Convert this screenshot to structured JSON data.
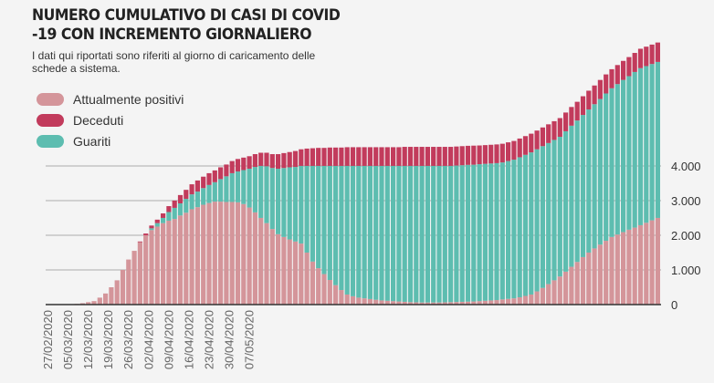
{
  "chart_data": {
    "type": "bar",
    "stacked": true,
    "title": "NUMERO CUMULATIVO DI CASI DI COVID -19 CON INCREMENTO GIORNALIERO",
    "subtitle": "I dati qui riportati sono riferiti al giorno di caricamento delle schede a sistema.",
    "x_tick_labels": [
      "27/02/2020",
      "05/03/2020",
      "12/03/2020",
      "19/03/2020",
      "26/03/2020",
      "02/04/2020",
      "09/04/2020",
      "16/04/2020",
      "23/04/2020",
      "30/04/2020",
      "07/05/2020"
    ],
    "y_ticks": [
      0,
      1000,
      2000,
      3000,
      4000
    ],
    "y_tick_labels": [
      "0",
      "1.000",
      "2.000",
      "3.000",
      "4.000"
    ],
    "ylim": [
      0,
      7550
    ],
    "grid": true,
    "legend_position": "top-left",
    "series": [
      {
        "name": "Attualmente positivi",
        "color": "#d4959a",
        "values": [
          0,
          0,
          0,
          0,
          0,
          20,
          40,
          70,
          100,
          200,
          320,
          500,
          700,
          1000,
          1300,
          1550,
          1800,
          2000,
          2150,
          2250,
          2350,
          2420,
          2470,
          2570,
          2650,
          2750,
          2810,
          2880,
          2930,
          2970,
          2970,
          2960,
          2960,
          2950,
          2900,
          2800,
          2660,
          2500,
          2350,
          2180,
          2030,
          1950,
          1880,
          1820,
          1760,
          1500,
          1240,
          1050,
          880,
          710,
          560,
          420,
          290,
          240,
          200,
          180,
          160,
          140,
          120,
          110,
          100,
          90,
          80,
          70,
          65,
          60,
          60,
          60,
          60,
          65,
          70,
          75,
          80,
          85,
          90,
          100,
          110,
          120,
          130,
          150,
          165,
          180,
          210,
          250,
          290,
          380,
          480,
          590,
          700,
          810,
          950,
          1090,
          1230,
          1370,
          1500,
          1620,
          1730,
          1840,
          1950,
          2020,
          2090,
          2160,
          2220,
          2290,
          2360,
          2430,
          2500
        ]
      },
      {
        "name": "Guariti",
        "color": "#5dbdb0",
        "values": [
          0,
          0,
          0,
          0,
          0,
          0,
          0,
          0,
          0,
          0,
          0,
          0,
          0,
          0,
          0,
          0,
          0,
          0,
          50,
          100,
          150,
          250,
          320,
          350,
          400,
          430,
          450,
          480,
          520,
          560,
          650,
          740,
          830,
          890,
          980,
          1120,
          1310,
          1500,
          1640,
          1760,
          1890,
          1990,
          2080,
          2150,
          2240,
          2500,
          2760,
          2950,
          3120,
          3290,
          3440,
          3580,
          3710,
          3760,
          3800,
          3820,
          3840,
          3860,
          3880,
          3890,
          3900,
          3910,
          3920,
          3930,
          3935,
          3940,
          3940,
          3940,
          3940,
          3935,
          3930,
          3935,
          3940,
          3945,
          3945,
          3950,
          3950,
          3950,
          3950,
          3950,
          3975,
          4000,
          4040,
          4070,
          4100,
          4100,
          4090,
          4070,
          4050,
          4030,
          4050,
          4070,
          4080,
          4100,
          4130,
          4160,
          4200,
          4250,
          4290,
          4340,
          4390,
          4430,
          4490,
          4530,
          4520,
          4510,
          4500
        ]
      },
      {
        "name": "Deceduti",
        "color": "#c23b5c",
        "values": [
          0,
          0,
          0,
          0,
          0,
          0,
          0,
          0,
          0,
          0,
          0,
          0,
          0,
          0,
          0,
          0,
          20,
          50,
          80,
          100,
          130,
          170,
          210,
          240,
          260,
          290,
          320,
          330,
          340,
          340,
          340,
          340,
          350,
          360,
          360,
          360,
          370,
          380,
          390,
          400,
          420,
          430,
          440,
          460,
          480,
          500,
          510,
          520,
          520,
          530,
          530,
          530,
          540,
          540,
          540,
          540,
          540,
          540,
          540,
          540,
          540,
          540,
          550,
          550,
          550,
          550,
          550,
          550,
          550,
          550,
          550,
          550,
          550,
          550,
          550,
          540,
          540,
          540,
          540,
          540,
          540,
          540,
          540,
          540,
          540,
          540,
          540,
          540,
          540,
          540,
          540,
          540,
          540,
          540,
          540,
          540,
          550,
          550,
          550,
          550,
          550,
          550,
          550,
          560,
          560,
          560,
          560
        ]
      }
    ]
  }
}
